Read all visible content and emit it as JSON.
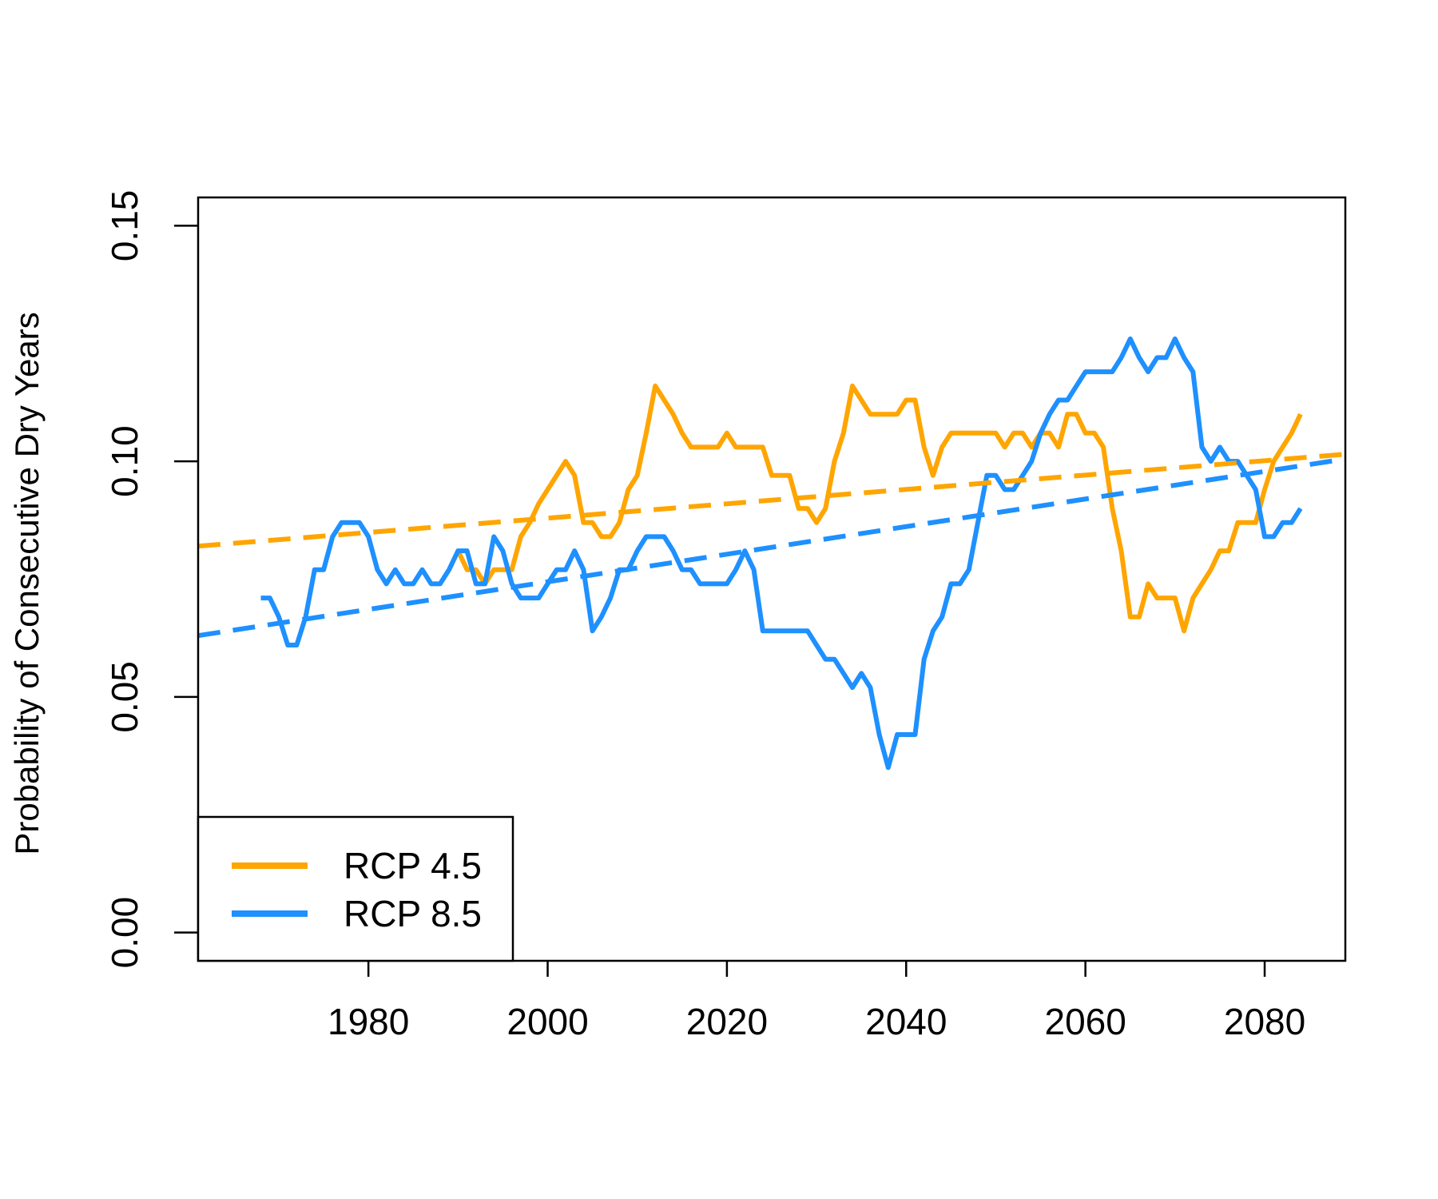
{
  "chart_data": {
    "type": "line",
    "ylabel": "Probability of Consecutive Dry Years",
    "xlim": [
      1961,
      2089
    ],
    "ylim": [
      -0.006,
      0.156
    ],
    "x_ticks": [
      1980,
      2000,
      2020,
      2040,
      2060,
      2080
    ],
    "x_tick_labels": [
      "1980",
      "2000",
      "2020",
      "2040",
      "2060",
      "2080"
    ],
    "y_ticks": [
      0.0,
      0.05,
      0.1,
      0.15
    ],
    "y_tick_labels": [
      "0.00",
      "0.05",
      "0.10",
      "0.15"
    ],
    "grid": false,
    "legend": {
      "position": "bottom-left",
      "entries": [
        {
          "label": "RCP 4.5",
          "color": "#FFA500"
        },
        {
          "label": "RCP 8.5",
          "color": "#1E90FF"
        }
      ]
    },
    "series": [
      {
        "name": "RCP 4.5",
        "color": "#FFA500",
        "style": "solid",
        "x": [
          1990,
          1991,
          1992,
          1993,
          1994,
          1995,
          1996,
          1997,
          1998,
          1999,
          2000,
          2001,
          2002,
          2003,
          2004,
          2005,
          2006,
          2007,
          2008,
          2009,
          2010,
          2011,
          2012,
          2013,
          2014,
          2015,
          2016,
          2017,
          2018,
          2019,
          2020,
          2021,
          2022,
          2023,
          2024,
          2025,
          2026,
          2027,
          2028,
          2029,
          2030,
          2031,
          2032,
          2033,
          2034,
          2035,
          2036,
          2037,
          2038,
          2039,
          2040,
          2041,
          2042,
          2043,
          2044,
          2045,
          2046,
          2047,
          2048,
          2049,
          2050,
          2051,
          2052,
          2053,
          2054,
          2055,
          2056,
          2057,
          2058,
          2059,
          2060,
          2061,
          2062,
          2063,
          2064,
          2065,
          2066,
          2067,
          2068,
          2069,
          2070,
          2071,
          2072,
          2073,
          2074,
          2075,
          2076,
          2077,
          2078,
          2079,
          2080,
          2081,
          2082,
          2083,
          2084
        ],
        "y": [
          0.081,
          0.077,
          0.077,
          0.074,
          0.077,
          0.077,
          0.077,
          0.084,
          0.087,
          0.091,
          0.094,
          0.097,
          0.1,
          0.097,
          0.087,
          0.087,
          0.084,
          0.084,
          0.087,
          0.094,
          0.097,
          0.106,
          0.116,
          0.113,
          0.11,
          0.106,
          0.103,
          0.103,
          0.103,
          0.103,
          0.106,
          0.103,
          0.103,
          0.103,
          0.103,
          0.097,
          0.097,
          0.097,
          0.09,
          0.09,
          0.087,
          0.09,
          0.1,
          0.106,
          0.116,
          0.113,
          0.11,
          0.11,
          0.11,
          0.11,
          0.113,
          0.113,
          0.103,
          0.097,
          0.103,
          0.106,
          0.106,
          0.106,
          0.106,
          0.106,
          0.106,
          0.103,
          0.106,
          0.106,
          0.103,
          0.106,
          0.106,
          0.103,
          0.11,
          0.11,
          0.106,
          0.106,
          0.103,
          0.09,
          0.081,
          0.067,
          0.067,
          0.074,
          0.071,
          0.071,
          0.071,
          0.064,
          0.071,
          0.074,
          0.077,
          0.081,
          0.081,
          0.087,
          0.087,
          0.087,
          0.094,
          0.1,
          0.103,
          0.106,
          0.11
        ]
      },
      {
        "name": "RCP 8.5",
        "color": "#1E90FF",
        "style": "solid",
        "x": [
          1968,
          1969,
          1970,
          1971,
          1972,
          1973,
          1974,
          1975,
          1976,
          1977,
          1978,
          1979,
          1980,
          1981,
          1982,
          1983,
          1984,
          1985,
          1986,
          1987,
          1988,
          1989,
          1990,
          1991,
          1992,
          1993,
          1994,
          1995,
          1996,
          1997,
          1998,
          1999,
          2000,
          2001,
          2002,
          2003,
          2004,
          2005,
          2006,
          2007,
          2008,
          2009,
          2010,
          2011,
          2012,
          2013,
          2014,
          2015,
          2016,
          2017,
          2018,
          2019,
          2020,
          2021,
          2022,
          2023,
          2024,
          2025,
          2026,
          2027,
          2028,
          2029,
          2030,
          2031,
          2032,
          2033,
          2034,
          2035,
          2036,
          2037,
          2038,
          2039,
          2040,
          2041,
          2042,
          2043,
          2044,
          2045,
          2046,
          2047,
          2048,
          2049,
          2050,
          2051,
          2052,
          2053,
          2054,
          2055,
          2056,
          2057,
          2058,
          2059,
          2060,
          2061,
          2062,
          2063,
          2064,
          2065,
          2066,
          2067,
          2068,
          2069,
          2070,
          2071,
          2072,
          2073,
          2074,
          2075,
          2076,
          2077,
          2078,
          2079,
          2080,
          2081,
          2082,
          2083,
          2084
        ],
        "y": [
          0.071,
          0.071,
          0.067,
          0.061,
          0.061,
          0.067,
          0.077,
          0.077,
          0.084,
          0.087,
          0.087,
          0.087,
          0.084,
          0.077,
          0.074,
          0.077,
          0.074,
          0.074,
          0.077,
          0.074,
          0.074,
          0.077,
          0.081,
          0.081,
          0.074,
          0.074,
          0.084,
          0.081,
          0.074,
          0.071,
          0.071,
          0.071,
          0.074,
          0.077,
          0.077,
          0.081,
          0.077,
          0.064,
          0.067,
          0.071,
          0.077,
          0.077,
          0.081,
          0.084,
          0.084,
          0.084,
          0.081,
          0.077,
          0.077,
          0.074,
          0.074,
          0.074,
          0.074,
          0.077,
          0.081,
          0.077,
          0.064,
          0.064,
          0.064,
          0.064,
          0.064,
          0.064,
          0.061,
          0.058,
          0.058,
          0.055,
          0.052,
          0.055,
          0.052,
          0.042,
          0.035,
          0.042,
          0.042,
          0.042,
          0.058,
          0.064,
          0.067,
          0.074,
          0.074,
          0.077,
          0.087,
          0.097,
          0.097,
          0.094,
          0.094,
          0.097,
          0.1,
          0.106,
          0.11,
          0.113,
          0.113,
          0.116,
          0.119,
          0.119,
          0.119,
          0.119,
          0.122,
          0.126,
          0.122,
          0.119,
          0.122,
          0.122,
          0.126,
          0.122,
          0.119,
          0.103,
          0.1,
          0.103,
          0.1,
          0.1,
          0.097,
          0.094,
          0.084,
          0.084,
          0.087,
          0.087,
          0.09
        ]
      },
      {
        "name": "",
        "color": "#FFA500",
        "style": "dashed",
        "x": [
          1961,
          2089
        ],
        "y": [
          0.082,
          0.1015
        ]
      },
      {
        "name": "",
        "color": "#1E90FF",
        "style": "dashed",
        "x": [
          1961,
          2089
        ],
        "y": [
          0.063,
          0.1005
        ]
      }
    ]
  }
}
